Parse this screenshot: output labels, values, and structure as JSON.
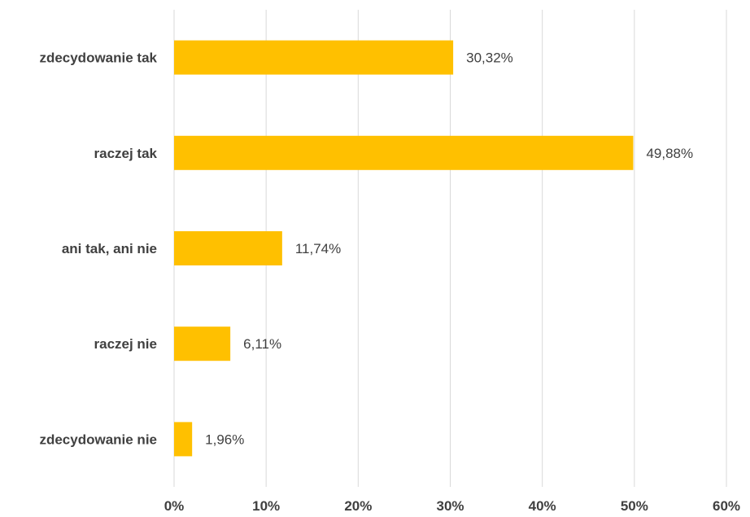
{
  "chart_data": {
    "type": "bar",
    "orientation": "horizontal",
    "categories": [
      "zdecydowanie tak",
      "raczej tak",
      "ani tak, ani nie",
      "raczej nie",
      "zdecydowanie nie"
    ],
    "values": [
      30.32,
      49.88,
      11.74,
      6.11,
      1.96
    ],
    "data_labels": [
      "30,32%",
      "49,88%",
      "11,74%",
      "6,11%",
      "1,96%"
    ],
    "x_ticks": [
      "0%",
      "10%",
      "20%",
      "30%",
      "40%",
      "50%",
      "60%"
    ],
    "xlim": [
      0,
      60
    ],
    "grid": "vertical",
    "legend": "none",
    "bar_color": "#ffc000"
  }
}
